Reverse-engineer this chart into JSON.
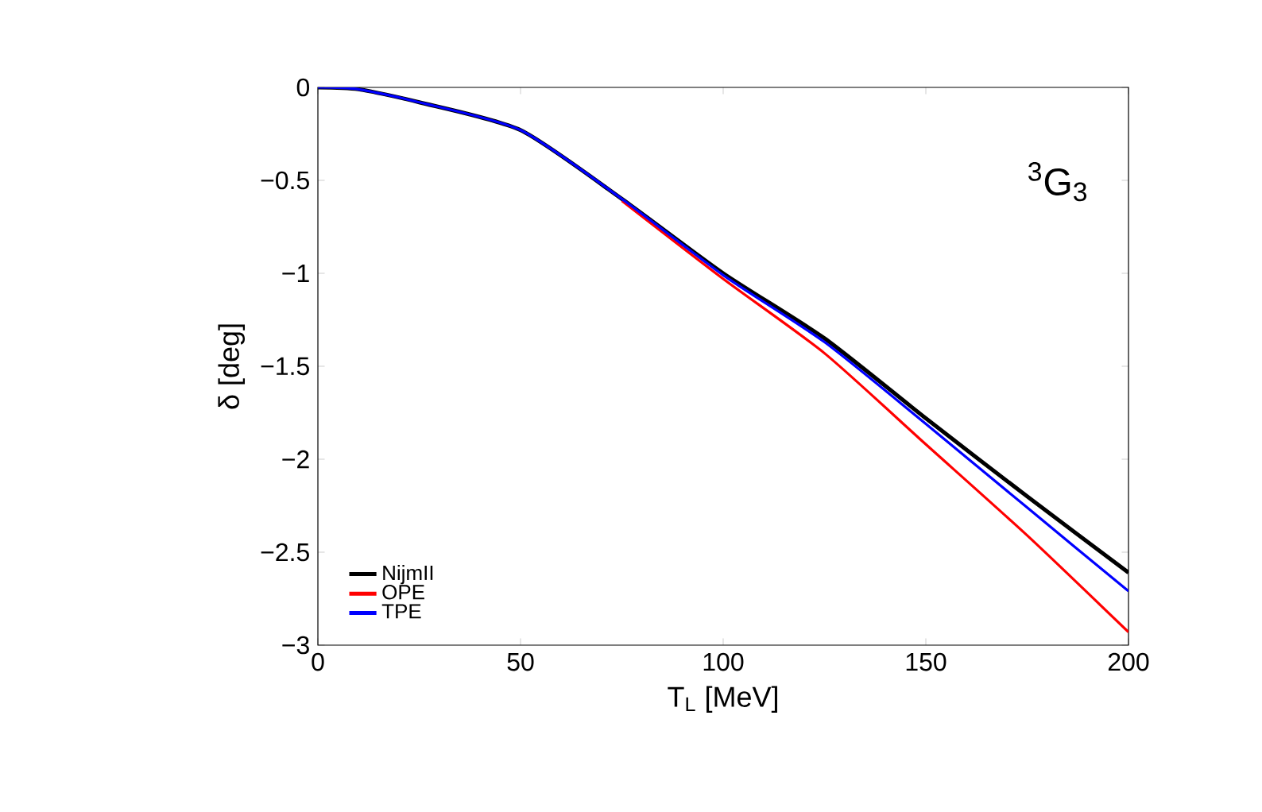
{
  "chart_data": {
    "type": "line",
    "xlabel": "T$_{L}$ [MeV]",
    "ylabel": "δ [deg]",
    "x": [
      0,
      10,
      25,
      50,
      75,
      100,
      125,
      150,
      175,
      200
    ],
    "series": [
      {
        "name": "NijmII",
        "color": "#000000",
        "values": [
          0,
          -0.01,
          -0.08,
          -0.23,
          -0.6,
          -1.0,
          -1.35,
          -1.78,
          -2.2,
          -2.61
        ]
      },
      {
        "name": "OPE",
        "color": "#ff0000",
        "values": [
          null,
          null,
          null,
          null,
          -0.61,
          -1.03,
          -1.43,
          -1.92,
          -2.41,
          -2.93
        ]
      },
      {
        "name": "TPE",
        "color": "#0000ff",
        "values": [
          0,
          -0.01,
          -0.08,
          -0.23,
          -0.6,
          -1.01,
          -1.37,
          -1.81,
          -2.26,
          -2.71
        ]
      }
    ],
    "annotations": [
      "$^{3}$G$_{3}$"
    ],
    "xlim": [
      0,
      200
    ],
    "ylim": [
      -3,
      0
    ],
    "xticks": [
      0,
      50,
      100,
      150,
      200
    ],
    "yticks": [
      {
        "value": -3,
        "label": "−3"
      },
      {
        "value": -2.5,
        "label": "−2.5"
      },
      {
        "value": -2,
        "label": "−2"
      },
      {
        "value": -1.5,
        "label": "−1.5"
      },
      {
        "value": -1,
        "label": "−1"
      },
      {
        "value": -0.5,
        "label": "−0.5"
      },
      0
    ],
    "legend": "bottom left",
    "grid": false,
    "line_style": "solid",
    "marker": "none"
  }
}
